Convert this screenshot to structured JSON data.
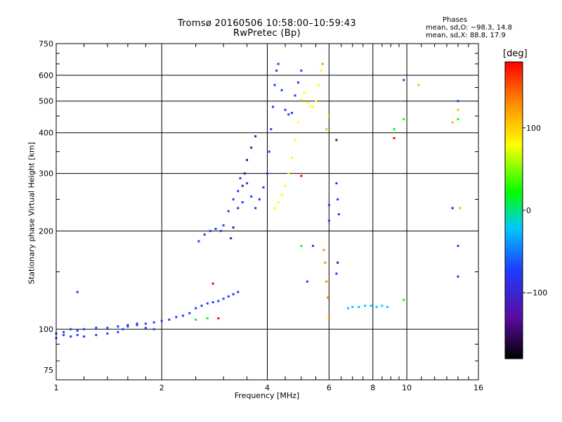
{
  "chart_data": {
    "type": "scatter",
    "title": "Tromsø 20160506 10:58:00–10:59:43",
    "subtitle": "RwPretec (Bp)",
    "xlabel": "Frequency [MHz]",
    "ylabel": "Stationary phase Virtual Height [km]",
    "x_scale": "log",
    "y_scale": "log",
    "xlim": [
      1,
      16
    ],
    "ylim": [
      70,
      750
    ],
    "x_ticks": [
      1,
      2,
      4,
      6,
      8,
      10,
      16
    ],
    "y_ticks": [
      75,
      100,
      200,
      300,
      400,
      500,
      600,
      750
    ],
    "grid": true,
    "phase_stats": {
      "title": "Phases",
      "line1": "mean, sd,O: −98.3, 14.8",
      "line2": "mean, sd,X:  88.8, 17.9"
    },
    "colorbar": {
      "unit": "[deg]",
      "range": [
        -180,
        180
      ],
      "ticks": [
        100,
        0,
        -100
      ],
      "colors": [
        "#000000",
        "#5a0ca0",
        "#1e3cff",
        "#00c8ff",
        "#00ff00",
        "#ffff00",
        "#ff8c00",
        "#ff0000"
      ]
    },
    "series": [
      {
        "color": "#1e3cff",
        "points": [
          [
            1.0,
            97
          ],
          [
            1.05,
            98
          ],
          [
            1.1,
            100
          ],
          [
            1.15,
            99
          ],
          [
            1.2,
            100
          ],
          [
            1.3,
            101
          ],
          [
            1.4,
            101
          ],
          [
            1.5,
            102
          ],
          [
            1.6,
            103
          ],
          [
            1.7,
            104
          ],
          [
            1.8,
            104
          ],
          [
            1.9,
            105
          ],
          [
            2.0,
            106
          ],
          [
            2.1,
            107
          ],
          [
            2.2,
            109
          ],
          [
            2.3,
            110
          ],
          [
            2.4,
            112
          ],
          [
            2.5,
            116
          ],
          [
            2.6,
            118
          ],
          [
            2.7,
            120
          ],
          [
            2.8,
            121
          ],
          [
            2.9,
            122
          ],
          [
            3.0,
            124
          ],
          [
            3.1,
            126
          ],
          [
            3.2,
            128
          ],
          [
            3.3,
            130
          ]
        ]
      },
      {
        "color": "#1e3cff",
        "points": [
          [
            1.0,
            94
          ],
          [
            1.05,
            96
          ],
          [
            1.1,
            95
          ],
          [
            1.15,
            96
          ],
          [
            1.2,
            95
          ],
          [
            1.3,
            96
          ],
          [
            1.4,
            97
          ],
          [
            1.5,
            98
          ],
          [
            1.55,
            100
          ],
          [
            1.6,
            102
          ],
          [
            1.7,
            103
          ],
          [
            1.8,
            101
          ],
          [
            1.9,
            100
          ]
        ]
      },
      {
        "color": "#1e3cff",
        "points": [
          [
            2.55,
            186
          ],
          [
            2.65,
            195
          ],
          [
            2.75,
            200
          ],
          [
            2.85,
            203
          ],
          [
            2.95,
            200
          ],
          [
            3.0,
            208
          ],
          [
            3.1,
            230
          ],
          [
            3.2,
            250
          ],
          [
            3.3,
            265
          ],
          [
            3.35,
            290
          ],
          [
            3.4,
            245
          ],
          [
            3.5,
            280
          ],
          [
            3.6,
            255
          ],
          [
            3.7,
            235
          ],
          [
            3.8,
            250
          ],
          [
            3.9,
            272
          ],
          [
            4.0,
            300
          ],
          [
            4.05,
            350
          ],
          [
            4.1,
            410
          ],
          [
            4.15,
            480
          ],
          [
            4.2,
            560
          ],
          [
            4.25,
            620
          ],
          [
            4.3,
            650
          ],
          [
            4.4,
            540
          ],
          [
            4.5,
            470
          ],
          [
            4.6,
            455
          ],
          [
            4.7,
            460
          ],
          [
            4.8,
            520
          ],
          [
            4.9,
            570
          ],
          [
            5.0,
            620
          ]
        ]
      },
      {
        "color": "#5a0ca0",
        "points": [
          [
            3.15,
            190
          ],
          [
            3.2,
            205
          ],
          [
            3.3,
            235
          ],
          [
            3.4,
            275
          ],
          [
            3.45,
            300
          ],
          [
            3.5,
            330
          ],
          [
            3.6,
            360
          ],
          [
            3.7,
            390
          ]
        ]
      },
      {
        "color": "#ffff00",
        "points": [
          [
            4.2,
            235
          ],
          [
            4.3,
            245
          ],
          [
            4.4,
            258
          ],
          [
            4.5,
            275
          ],
          [
            4.6,
            300
          ],
          [
            4.7,
            335
          ],
          [
            4.8,
            380
          ],
          [
            4.9,
            430
          ],
          [
            5.0,
            505
          ],
          [
            5.1,
            530
          ],
          [
            5.2,
            495
          ],
          [
            5.3,
            482
          ],
          [
            5.4,
            480
          ],
          [
            5.5,
            500
          ],
          [
            5.6,
            560
          ],
          [
            5.7,
            620
          ]
        ]
      },
      {
        "color": "#00c8ff",
        "points": [
          [
            6.8,
            116
          ],
          [
            7.0,
            117
          ],
          [
            7.3,
            117
          ],
          [
            7.6,
            118
          ],
          [
            7.9,
            118
          ],
          [
            8.2,
            117
          ],
          [
            8.5,
            118
          ],
          [
            8.8,
            117
          ]
        ]
      },
      {
        "color": "#ff8c00",
        "points": [
          [
            5.8,
            175
          ],
          [
            5.85,
            160
          ],
          [
            5.9,
            140
          ],
          [
            5.95,
            125
          ],
          [
            6.0,
            108
          ],
          [
            5.75,
            650
          ]
        ]
      },
      {
        "color": "#1e3cff",
        "points": [
          [
            6.3,
            280
          ],
          [
            6.35,
            250
          ],
          [
            6.4,
            225
          ],
          [
            6.3,
            148
          ],
          [
            6.0,
            240
          ],
          [
            6.0,
            215
          ],
          [
            5.2,
            140
          ],
          [
            5.4,
            180
          ],
          [
            14.0,
            500
          ],
          [
            14.0,
            180
          ],
          [
            14.0,
            145
          ],
          [
            9.8,
            580
          ],
          [
            1.15,
            130
          ]
        ]
      },
      {
        "color": "#00ff00",
        "points": [
          [
            9.2,
            410
          ],
          [
            9.8,
            440
          ],
          [
            9.8,
            123
          ],
          [
            14.0,
            440
          ],
          [
            5.0,
            180
          ],
          [
            2.5,
            107
          ],
          [
            2.7,
            108
          ]
        ]
      },
      {
        "color": "#ff0000",
        "points": [
          [
            2.8,
            138
          ],
          [
            2.9,
            108
          ],
          [
            9.2,
            385
          ],
          [
            5.0,
            295
          ]
        ]
      },
      {
        "color": "#ffb300",
        "points": [
          [
            10.8,
            560
          ],
          [
            13.5,
            430
          ],
          [
            14.2,
            235
          ],
          [
            6.0,
            450
          ],
          [
            5.9,
            410
          ],
          [
            14.0,
            470
          ]
        ]
      },
      {
        "color": "#5a0ca0",
        "points": [
          [
            13.5,
            235
          ],
          [
            6.3,
            380
          ],
          [
            6.35,
            160
          ]
        ]
      }
    ]
  }
}
